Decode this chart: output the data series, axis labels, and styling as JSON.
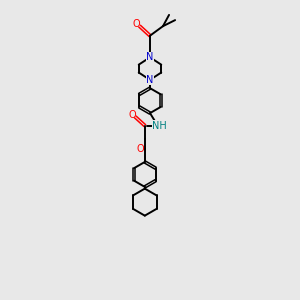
{
  "background_color": "#e8e8e8",
  "bond_color": "#000000",
  "N_color": "#0000cd",
  "O_color": "#ff0000",
  "NH_color": "#008080",
  "text_color": "#000000",
  "figsize": [
    3.0,
    3.0
  ],
  "dpi": 100,
  "xlim": [
    0,
    10
  ],
  "ylim": [
    0,
    17
  ]
}
